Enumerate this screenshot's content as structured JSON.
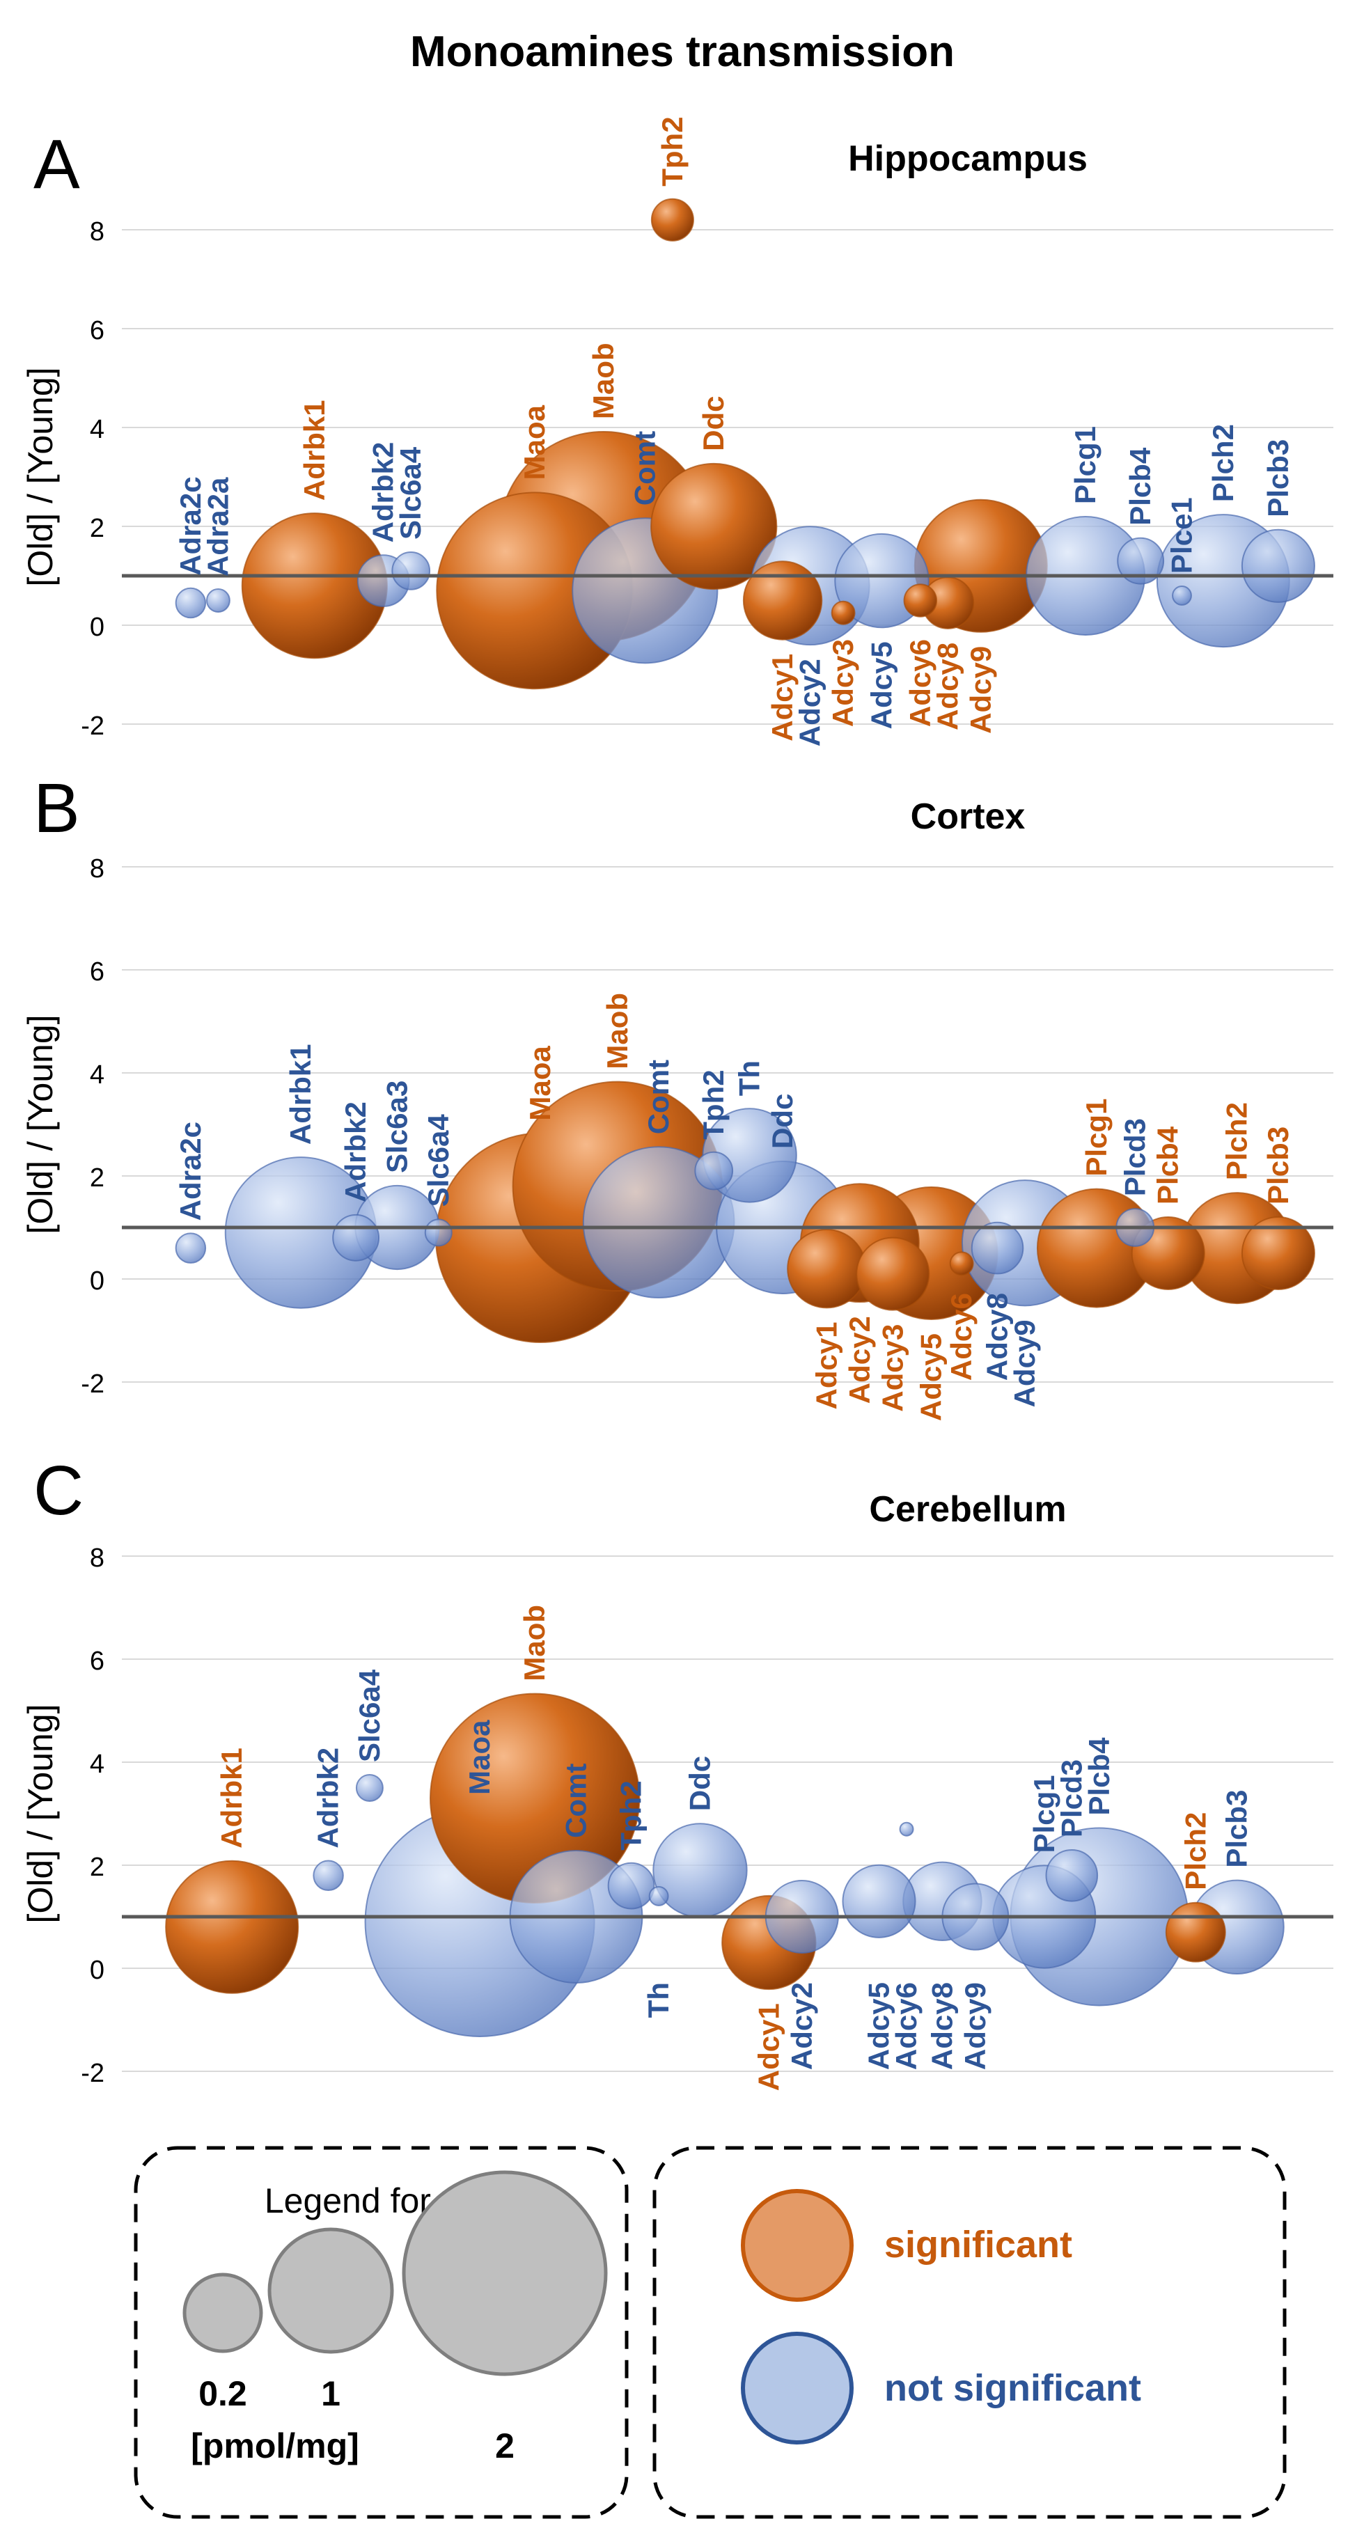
{
  "figure": {
    "title": "Monoamines transmission"
  },
  "colors": {
    "significant": "#C65A0C",
    "not_significant": "#2E5597",
    "grid": "#d9d9d9",
    "baseline": "#595959",
    "legend_gray": "#bfbfbf"
  },
  "chart_data": [
    {
      "panel": "A",
      "type": "scatter",
      "subtype": "bubble",
      "title": "Hippocampus",
      "xlabel": "",
      "ylabel": "[Old] / [Young]",
      "ylim": [
        -2,
        8
      ],
      "yticks": [
        -2,
        0,
        2,
        4,
        6,
        8
      ],
      "reference_line": 1,
      "size_unit": "pmol/mg",
      "points": [
        {
          "gene": "Adra2c",
          "x": 2.5,
          "y": 0.45,
          "size": 0.05,
          "significant": false,
          "label_pos": "above"
        },
        {
          "gene": "Adra2a",
          "x": 3.5,
          "y": 0.5,
          "size": 0.03,
          "significant": false,
          "label_pos": "above"
        },
        {
          "gene": "Adrbk1",
          "x": 7.0,
          "y": 0.8,
          "size": 1.2,
          "significant": true,
          "label_pos": "above"
        },
        {
          "gene": "Adrbk2",
          "x": 9.5,
          "y": 0.9,
          "size": 0.15,
          "significant": false,
          "label_pos": "above"
        },
        {
          "gene": "Slc6a4",
          "x": 10.5,
          "y": 1.1,
          "size": 0.08,
          "significant": false,
          "label_pos": "above"
        },
        {
          "gene": "Maoa",
          "x": 15.0,
          "y": 0.7,
          "size": 2.2,
          "significant": true,
          "label_pos": "above"
        },
        {
          "gene": "Maob",
          "x": 17.5,
          "y": 1.8,
          "size": 2.5,
          "significant": true,
          "label_pos": "above"
        },
        {
          "gene": "Comt",
          "x": 19.0,
          "y": 0.7,
          "size": 1.2,
          "significant": false,
          "label_pos": "above"
        },
        {
          "gene": "Tph2",
          "x": 20.0,
          "y": 8.2,
          "size": 0.1,
          "significant": true,
          "label_pos": "above"
        },
        {
          "gene": "Ddc",
          "x": 21.5,
          "y": 2.0,
          "size": 0.9,
          "significant": true,
          "label_pos": "above"
        },
        {
          "gene": "Adcy1",
          "x": 24.0,
          "y": 0.5,
          "size": 0.35,
          "significant": true,
          "label_pos": "below"
        },
        {
          "gene": "Adcy2",
          "x": 25.0,
          "y": 0.8,
          "size": 0.8,
          "significant": false,
          "label_pos": "below"
        },
        {
          "gene": "Adcy3",
          "x": 26.2,
          "y": 0.25,
          "size": 0.03,
          "significant": true,
          "label_pos": "below"
        },
        {
          "gene": "Adcy5",
          "x": 27.6,
          "y": 0.9,
          "size": 0.5,
          "significant": false,
          "label_pos": "below"
        },
        {
          "gene": "Adcy6",
          "x": 29.0,
          "y": 0.5,
          "size": 0.06,
          "significant": true,
          "label_pos": "below"
        },
        {
          "gene": "Adcy8",
          "x": 30.0,
          "y": 0.45,
          "size": 0.15,
          "significant": true,
          "label_pos": "below"
        },
        {
          "gene": "Adcy9",
          "x": 31.2,
          "y": 1.2,
          "size": 1.0,
          "significant": true,
          "label_pos": "below"
        },
        {
          "gene": "Plcg1",
          "x": 35.0,
          "y": 1.0,
          "size": 0.8,
          "significant": false,
          "label_pos": "above"
        },
        {
          "gene": "Plcb4",
          "x": 37.0,
          "y": 1.3,
          "size": 0.12,
          "significant": false,
          "label_pos": "above"
        },
        {
          "gene": "Plce1",
          "x": 38.5,
          "y": 0.6,
          "size": 0.02,
          "significant": false,
          "label_pos": "above"
        },
        {
          "gene": "Plch2",
          "x": 40.0,
          "y": 0.9,
          "size": 1.0,
          "significant": false,
          "label_pos": "above"
        },
        {
          "gene": "Plcb3",
          "x": 42.0,
          "y": 1.2,
          "size": 0.3,
          "significant": false,
          "label_pos": "above"
        }
      ]
    },
    {
      "panel": "B",
      "type": "scatter",
      "subtype": "bubble",
      "title": "Cortex",
      "xlabel": "",
      "ylabel": "[Old] / [Young]",
      "ylim": [
        -2,
        8
      ],
      "yticks": [
        -2,
        0,
        2,
        4,
        6,
        8
      ],
      "reference_line": 1,
      "size_unit": "pmol/mg",
      "points": [
        {
          "gene": "Adra2c",
          "x": 2.5,
          "y": 0.6,
          "size": 0.05,
          "significant": false,
          "label_pos": "above"
        },
        {
          "gene": "Adrbk1",
          "x": 6.5,
          "y": 0.9,
          "size": 1.3,
          "significant": false,
          "label_pos": "above"
        },
        {
          "gene": "Adrbk2",
          "x": 8.5,
          "y": 0.8,
          "size": 0.12,
          "significant": false,
          "label_pos": "above"
        },
        {
          "gene": "Slc6a3",
          "x": 10.0,
          "y": 1.0,
          "size": 0.4,
          "significant": false,
          "label_pos": "above"
        },
        {
          "gene": "Slc6a4",
          "x": 11.5,
          "y": 0.9,
          "size": 0.04,
          "significant": false,
          "label_pos": "above"
        },
        {
          "gene": "Maoa",
          "x": 15.2,
          "y": 0.8,
          "size": 2.5,
          "significant": true,
          "label_pos": "above"
        },
        {
          "gene": "Maob",
          "x": 18.0,
          "y": 1.8,
          "size": 2.5,
          "significant": true,
          "label_pos": "above"
        },
        {
          "gene": "Comt",
          "x": 19.5,
          "y": 1.1,
          "size": 1.3,
          "significant": false,
          "label_pos": "above"
        },
        {
          "gene": "Tph2",
          "x": 21.5,
          "y": 2.1,
          "size": 0.08,
          "significant": false,
          "label_pos": "above"
        },
        {
          "gene": "Th",
          "x": 22.8,
          "y": 2.4,
          "size": 0.5,
          "significant": false,
          "label_pos": "above"
        },
        {
          "gene": "Ddc",
          "x": 24.0,
          "y": 1.0,
          "size": 1.0,
          "significant": false,
          "label_pos": "above"
        },
        {
          "gene": "Adcy1",
          "x": 25.6,
          "y": 0.2,
          "size": 0.35,
          "significant": true,
          "label_pos": "below"
        },
        {
          "gene": "Adcy2",
          "x": 26.8,
          "y": 0.7,
          "size": 0.8,
          "significant": true,
          "label_pos": "below"
        },
        {
          "gene": "Adcy3",
          "x": 28.0,
          "y": 0.1,
          "size": 0.3,
          "significant": true,
          "label_pos": "below"
        },
        {
          "gene": "Adcy5",
          "x": 29.4,
          "y": 0.5,
          "size": 1.0,
          "significant": true,
          "label_pos": "below"
        },
        {
          "gene": "Adcy6",
          "x": 30.5,
          "y": 0.3,
          "size": 0.03,
          "significant": true,
          "label_pos": "below"
        },
        {
          "gene": "Adcy8",
          "x": 31.8,
          "y": 0.6,
          "size": 0.15,
          "significant": false,
          "label_pos": "below"
        },
        {
          "gene": "Adcy9",
          "x": 32.8,
          "y": 0.7,
          "size": 0.9,
          "significant": false,
          "label_pos": "below"
        },
        {
          "gene": "Plcg1",
          "x": 35.4,
          "y": 0.6,
          "size": 0.8,
          "significant": true,
          "label_pos": "above"
        },
        {
          "gene": "Plcd3",
          "x": 36.8,
          "y": 1.0,
          "size": 0.08,
          "significant": false,
          "label_pos": "above"
        },
        {
          "gene": "Plcb4",
          "x": 38.0,
          "y": 0.5,
          "size": 0.3,
          "significant": true,
          "label_pos": "above"
        },
        {
          "gene": "Plch2",
          "x": 40.5,
          "y": 0.6,
          "size": 0.7,
          "significant": true,
          "label_pos": "above"
        },
        {
          "gene": "Plcb3",
          "x": 42.0,
          "y": 0.5,
          "size": 0.3,
          "significant": true,
          "label_pos": "above"
        }
      ]
    },
    {
      "panel": "C",
      "type": "scatter",
      "subtype": "bubble",
      "title": "Cerebellum",
      "xlabel": "",
      "ylabel": "[Old] / [Young]",
      "ylim": [
        -2,
        8
      ],
      "yticks": [
        -2,
        0,
        2,
        4,
        6,
        8
      ],
      "reference_line": 1,
      "size_unit": "pmol/mg",
      "points": [
        {
          "gene": "Adrbk1",
          "x": 4.0,
          "y": 0.8,
          "size": 1.0,
          "significant": true,
          "label_pos": "above"
        },
        {
          "gene": "Adrbk2",
          "x": 7.5,
          "y": 1.8,
          "size": 0.05,
          "significant": false,
          "label_pos": "above"
        },
        {
          "gene": "Slc6a4",
          "x": 9.0,
          "y": 3.5,
          "size": 0.04,
          "significant": false,
          "label_pos": "above"
        },
        {
          "gene": "Maoa",
          "x": 13.0,
          "y": 0.9,
          "size": 3.0,
          "significant": false,
          "label_pos": "above"
        },
        {
          "gene": "Maob",
          "x": 15.0,
          "y": 3.3,
          "size": 2.5,
          "significant": true,
          "label_pos": "above"
        },
        {
          "gene": "Comt",
          "x": 16.5,
          "y": 1.0,
          "size": 1.0,
          "significant": false,
          "label_pos": "above"
        },
        {
          "gene": "Tph2",
          "x": 18.5,
          "y": 1.6,
          "size": 0.12,
          "significant": false,
          "label_pos": "above"
        },
        {
          "gene": "Th",
          "x": 19.5,
          "y": 1.4,
          "size": 0.02,
          "significant": false,
          "label_pos": "below"
        },
        {
          "gene": "Ddc",
          "x": 21.0,
          "y": 1.9,
          "size": 0.5,
          "significant": false,
          "label_pos": "above"
        },
        {
          "gene": "Adcy1",
          "x": 23.5,
          "y": 0.5,
          "size": 0.5,
          "significant": true,
          "label_pos": "below"
        },
        {
          "gene": "Adcy2",
          "x": 24.7,
          "y": 1.0,
          "size": 0.3,
          "significant": false,
          "label_pos": "below"
        },
        {
          "gene": "Adcy5",
          "x": 27.5,
          "y": 1.3,
          "size": 0.3,
          "significant": false,
          "label_pos": "below"
        },
        {
          "gene": "Adcy6",
          "x": 28.5,
          "y": 2.7,
          "size": 0.01,
          "significant": false,
          "label_pos": "below"
        },
        {
          "gene": "Adcy8",
          "x": 29.8,
          "y": 1.3,
          "size": 0.35,
          "significant": false,
          "label_pos": "below"
        },
        {
          "gene": "Adcy9",
          "x": 31.0,
          "y": 1.0,
          "size": 0.25,
          "significant": false,
          "label_pos": "below"
        },
        {
          "gene": "Plcg1",
          "x": 33.5,
          "y": 1.0,
          "size": 0.6,
          "significant": false,
          "label_pos": "above"
        },
        {
          "gene": "Plcd3",
          "x": 34.5,
          "y": 1.8,
          "size": 0.15,
          "significant": false,
          "label_pos": "above"
        },
        {
          "gene": "Plcb4",
          "x": 35.5,
          "y": 1.0,
          "size": 1.8,
          "significant": false,
          "label_pos": "above"
        },
        {
          "gene": "Plch2",
          "x": 39.0,
          "y": 0.7,
          "size": 0.2,
          "significant": true,
          "label_pos": "above"
        },
        {
          "gene": "Plcb3",
          "x": 40.5,
          "y": 0.8,
          "size": 0.5,
          "significant": false,
          "label_pos": "above"
        }
      ]
    }
  ],
  "legend": {
    "size_title": "Legend for A-C",
    "size_items": [
      {
        "label": "0.2",
        "size": 0.2
      },
      {
        "label": "1",
        "size": 1.0
      },
      {
        "label": "2",
        "size": 2.0
      }
    ],
    "unit": "[pmol/mg]",
    "color_items": [
      {
        "label": "significant",
        "significant": true
      },
      {
        "label": "not significant",
        "significant": false
      }
    ]
  }
}
